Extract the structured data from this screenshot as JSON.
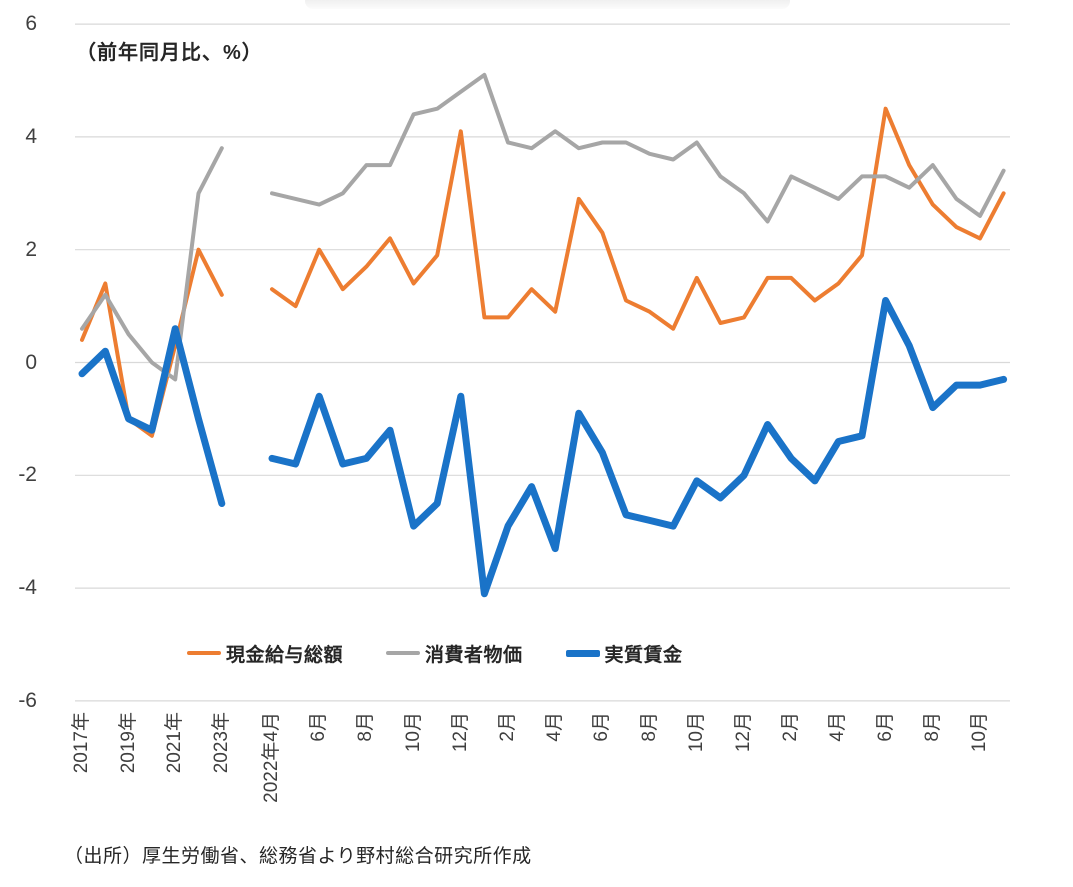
{
  "page": {
    "background": "#FFFFFF"
  },
  "chart_data": {
    "type": "line",
    "unit_note": "（前年同月比、%）",
    "source_note": "（出所）厚生労働省、総務省より野村総合研究所作成",
    "grid_color": "#D9D9D9",
    "legend_position": "bottom",
    "y_axis": {
      "min": -6,
      "max": 6,
      "step": 2,
      "gridlines": true,
      "tick_values": [
        6,
        4,
        2,
        0,
        -2,
        -4,
        -6
      ]
    },
    "legend": [
      {
        "label": "現金給与総額",
        "color": "#ED7D31",
        "stroke_width": 4
      },
      {
        "label": "消費者物価",
        "color": "#A6A6A6",
        "stroke_width": 4
      },
      {
        "label": "実質賃金",
        "color": "#1A73C8",
        "stroke_width": 7
      }
    ],
    "segments": [
      {
        "id": "annual",
        "categories": [
          "2017年",
          "2018年",
          "2019年",
          "2020年",
          "2021年",
          "2022年",
          "2023年"
        ],
        "tick_indices": [
          0,
          2,
          4,
          6
        ],
        "tick_labels": [
          "2017年",
          "2019年",
          "2021年",
          "2023年"
        ],
        "series": [
          {
            "name": "現金給与総額",
            "color": "#ED7D31",
            "stroke_width": 4,
            "values": [
              0.4,
              1.4,
              -1.0,
              -1.3,
              0.3,
              2.0,
              1.2
            ]
          },
          {
            "name": "消費者物価",
            "color": "#A6A6A6",
            "stroke_width": 4,
            "values": [
              0.6,
              1.2,
              0.5,
              0.0,
              -0.3,
              3.0,
              3.8
            ]
          },
          {
            "name": "実質賃金",
            "color": "#1A73C8",
            "stroke_width": 7,
            "values": [
              -0.2,
              0.2,
              -1.0,
              -1.2,
              0.6,
              -1.0,
              -2.5
            ]
          }
        ]
      },
      {
        "id": "monthly",
        "categories": [
          "2022年4月",
          "2022年5月",
          "2022年6月",
          "2022年7月",
          "2022年8月",
          "2022年9月",
          "2022年10月",
          "2022年11月",
          "2022年12月",
          "2023年1月",
          "2023年2月",
          "2023年3月",
          "2023年4月",
          "2023年5月",
          "2023年6月",
          "2023年7月",
          "2023年8月",
          "2023年9月",
          "2023年10月",
          "2023年11月",
          "2023年12月",
          "2024年1月",
          "2024年2月",
          "2024年3月",
          "2024年4月",
          "2024年5月",
          "2024年6月",
          "2024年7月",
          "2024年8月",
          "2024年9月",
          "2024年10月",
          "2024年11月"
        ],
        "tick_indices": [
          0,
          2,
          4,
          6,
          8,
          10,
          12,
          14,
          16,
          18,
          20,
          22,
          24,
          26,
          28,
          30
        ],
        "tick_labels": [
          "2022年4月",
          "6月",
          "8月",
          "10月",
          "12月",
          "2月",
          "4月",
          "6月",
          "8月",
          "10月",
          "12月",
          "2月",
          "4月",
          "6月",
          "8月",
          "10月"
        ],
        "series": [
          {
            "name": "現金給与総額",
            "color": "#ED7D31",
            "stroke_width": 4,
            "values": [
              1.3,
              1.0,
              2.0,
              1.3,
              1.7,
              2.2,
              1.4,
              1.9,
              4.1,
              0.8,
              0.8,
              1.3,
              0.9,
              2.9,
              2.3,
              1.1,
              0.9,
              0.6,
              1.5,
              0.7,
              0.8,
              1.5,
              1.5,
              1.1,
              1.4,
              1.9,
              4.5,
              3.5,
              2.8,
              2.4,
              2.2,
              3.0
            ]
          },
          {
            "name": "消費者物価",
            "color": "#A6A6A6",
            "stroke_width": 4,
            "values": [
              3.0,
              2.9,
              2.8,
              3.0,
              3.5,
              3.5,
              4.4,
              4.5,
              4.8,
              5.1,
              3.9,
              3.8,
              4.1,
              3.8,
              3.9,
              3.9,
              3.7,
              3.6,
              3.9,
              3.3,
              3.0,
              2.5,
              3.3,
              3.1,
              2.9,
              3.3,
              3.3,
              3.1,
              3.5,
              2.9,
              2.6,
              3.4
            ]
          },
          {
            "name": "実質賃金",
            "color": "#1A73C8",
            "stroke_width": 7,
            "values": [
              -1.7,
              -1.8,
              -0.6,
              -1.8,
              -1.7,
              -1.2,
              -2.9,
              -2.5,
              -0.6,
              -4.1,
              -2.9,
              -2.2,
              -3.3,
              -0.9,
              -1.6,
              -2.7,
              -2.8,
              -2.9,
              -2.1,
              -2.4,
              -2.0,
              -1.1,
              -1.7,
              -2.1,
              -1.4,
              -1.3,
              1.1,
              0.3,
              -0.8,
              -0.4,
              -0.4,
              -0.3
            ]
          }
        ]
      }
    ]
  }
}
